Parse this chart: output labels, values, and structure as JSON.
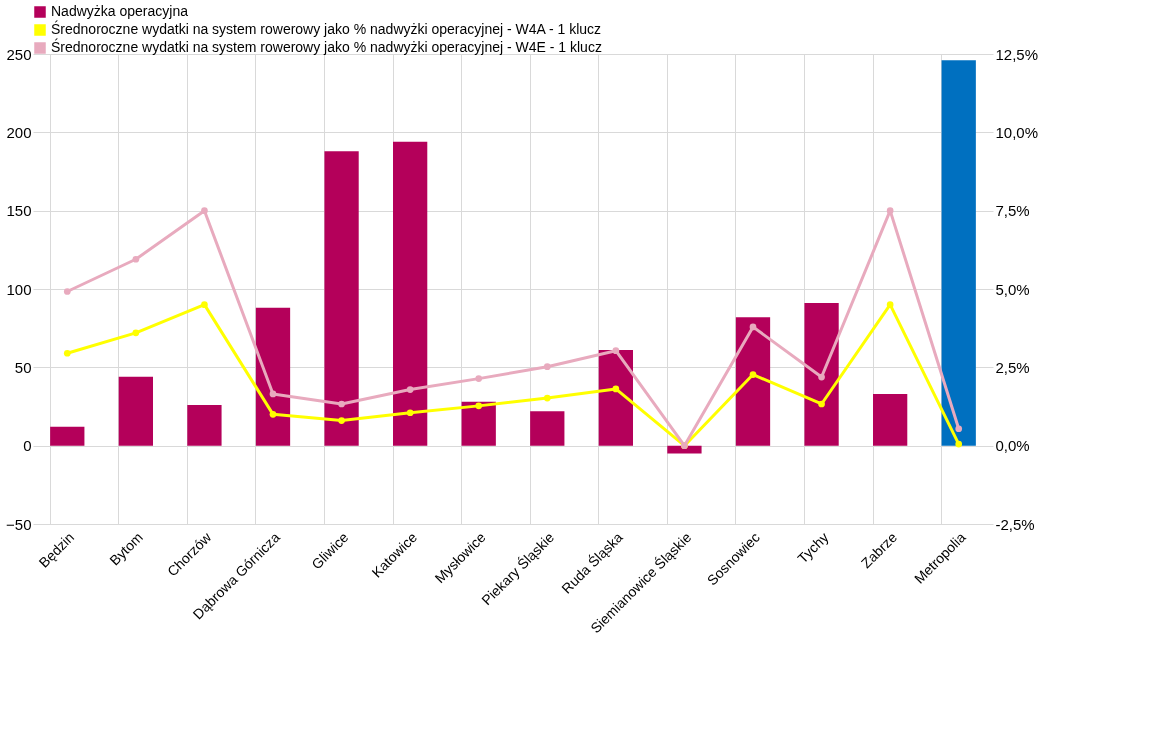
{
  "chart_data": {
    "type": "bar",
    "categories": [
      "Będzin",
      "Bytom",
      "Chorzów",
      "Dąbrowa Górnicza",
      "Gliwice",
      "Katowice",
      "Mysłowice",
      "Piekary Śląskie",
      "Ruda Śląska",
      "Siemianowice Śląskie",
      "Sosnowiec",
      "Tychy",
      "Zabrze",
      "Metropolia"
    ],
    "series": [
      {
        "name": "Nadwyżka operacyjna",
        "color": "#b4005a",
        "colors": [
          "#b4005a",
          "#b4005a",
          "#b4005a",
          "#b4005a",
          "#b4005a",
          "#b4005a",
          "#b4005a",
          "#b4005a",
          "#b4005a",
          "#b4005a",
          "#b4005a",
          "#b4005a",
          "#b4005a",
          "#0070c0"
        ],
        "values": [
          12,
          44,
          26,
          88,
          188,
          194,
          28,
          22,
          61,
          -5,
          82,
          91,
          33,
          246
        ]
      },
      {
        "name": "Średnoroczne wydatki na system rowerowy jako % nadwyżki operacyjnej - W4A - 1 klucz",
        "type": "line",
        "axis": "y2",
        "color": "#ffff00",
        "values": [
          2.95,
          3.6,
          4.5,
          1.0,
          0.8,
          1.05,
          1.27,
          1.52,
          1.81,
          0,
          2.27,
          1.33,
          4.5,
          0.05
        ]
      },
      {
        "name": "Średnoroczne wydatki na system rowerowy jako % nadwyżki operacyjnej - W4E - 1 klucz",
        "type": "line",
        "axis": "y2",
        "color": "#e8aabe",
        "values": [
          4.92,
          5.95,
          7.5,
          1.65,
          1.33,
          1.79,
          2.14,
          2.52,
          3.03,
          0,
          3.79,
          2.19,
          7.5,
          0.54
        ]
      }
    ],
    "ylim": [
      -50,
      250
    ],
    "yticks": [
      -50,
      0,
      50,
      100,
      150,
      200,
      250
    ],
    "y2lim": [
      -2.5,
      12.5
    ],
    "y2ticks": [
      {
        "value": -2.5,
        "label": "-2,5%"
      },
      {
        "value": 0,
        "label": "0,0%"
      },
      {
        "value": 2.5,
        "label": "2,5%"
      },
      {
        "value": 5,
        "label": "5,0%"
      },
      {
        "value": 7.5,
        "label": "7,5%"
      },
      {
        "value": 10,
        "label": "10,0%"
      },
      {
        "value": 12.5,
        "label": "12,5%"
      }
    ],
    "grid": true,
    "legend": "top",
    "marker": "circle",
    "line_style": "solid"
  }
}
